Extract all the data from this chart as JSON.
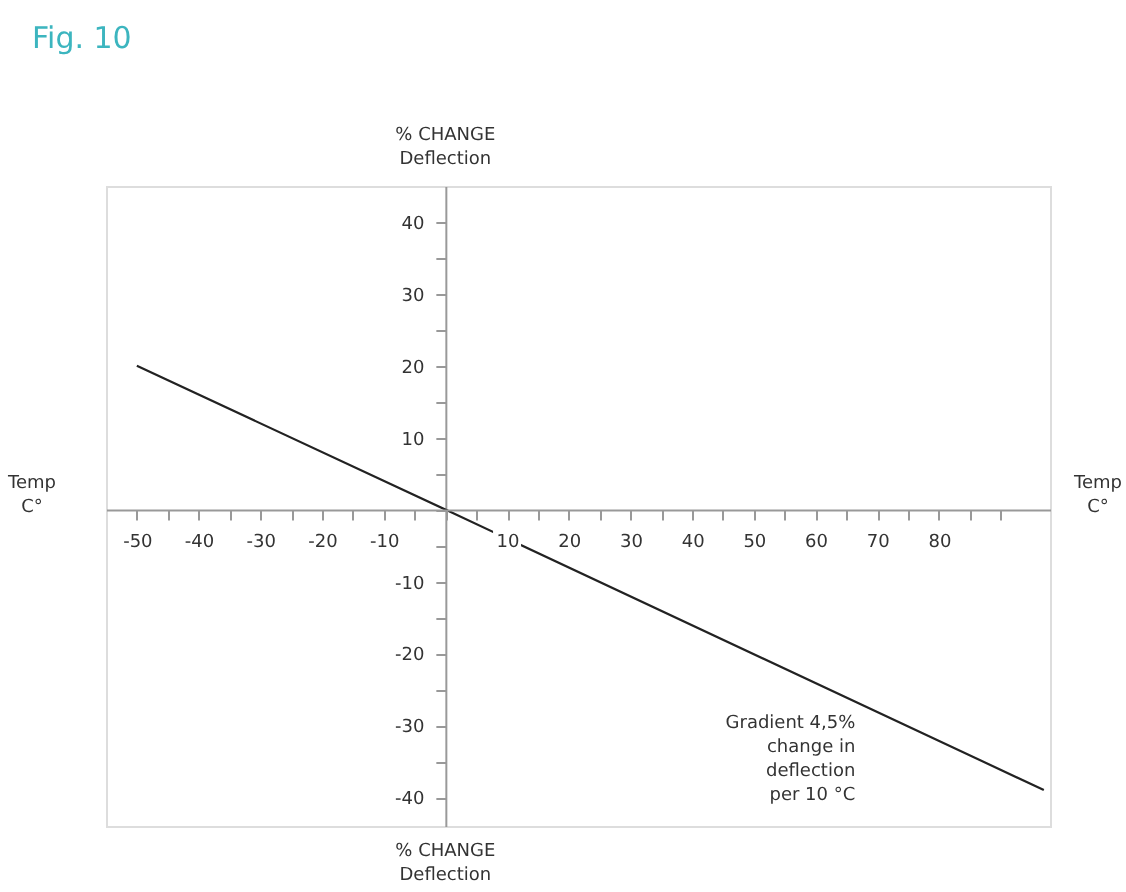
{
  "chart_data": {
    "type": "line",
    "title": "Fig. 10",
    "xlabel": "Temp\nC°",
    "ylabel": "% CHANGE\nDeflection",
    "x": [
      -50,
      0,
      97
    ],
    "series": [
      {
        "color": "#222222",
        "values": [
          20,
          0,
          -39
        ]
      }
    ],
    "xlim": [
      -55,
      98
    ],
    "ylim": [
      -44,
      45
    ],
    "xticks": [
      -50,
      {
        "value": -45,
        "label": null
      },
      -40,
      {
        "value": -35,
        "label": null
      },
      -30,
      {
        "value": -25,
        "label": null
      },
      -20,
      {
        "value": -15,
        "label": null
      },
      -10,
      {
        "value": -5,
        "label": null
      },
      {
        "value": 0,
        "label": null
      },
      {
        "value": 5,
        "label": null
      },
      10,
      {
        "value": 15,
        "label": null
      },
      20,
      {
        "value": 25,
        "label": null
      },
      30,
      {
        "value": 35,
        "label": null
      },
      40,
      {
        "value": 45,
        "label": null
      },
      50,
      {
        "value": 55,
        "label": null
      },
      60,
      {
        "value": 65,
        "label": null
      },
      70,
      {
        "value": 75,
        "label": null
      },
      80,
      {
        "value": 85,
        "label": null
      },
      {
        "value": 90,
        "label": null
      }
    ],
    "yticks": [
      -40,
      {
        "value": -35,
        "label": null
      },
      -30,
      {
        "value": -25,
        "label": null
      },
      -20,
      {
        "value": -15,
        "label": null
      },
      -10,
      {
        "value": -5,
        "label": null
      },
      {
        "value": 0,
        "label": null
      },
      {
        "value": 5,
        "label": null
      },
      10,
      {
        "value": 15,
        "label": null
      },
      20,
      {
        "value": 25,
        "label": null
      },
      30,
      {
        "value": 35,
        "label": null
      },
      40
    ],
    "annotations": [
      "Gradient 4,5%\nchange in\ndeflection\nper 10 °C",
      "% CHANGE\nDeflection"
    ],
    "grid": false,
    "marker": "none",
    "line_style": "solid"
  }
}
